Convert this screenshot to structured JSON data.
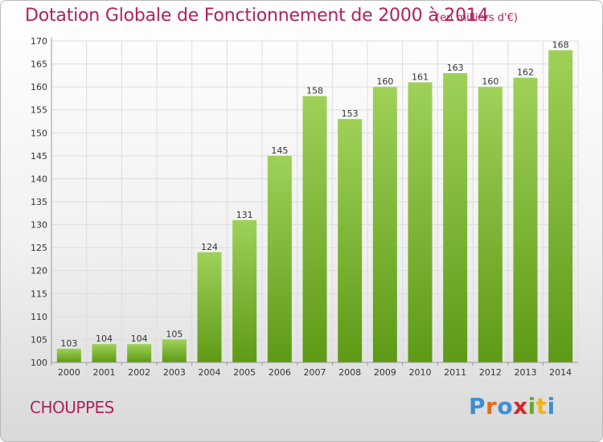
{
  "header": {
    "title": "Dotation Globale de Fonctionnement de 2000 à 2014",
    "unit": "(en milliers d'€)"
  },
  "footer": {
    "commune": "CHOUPPES",
    "logo": "Proxiti"
  },
  "colors": {
    "title": "#b2215d",
    "bar_top": "#9fd158",
    "bar_bottom": "#5e9a16",
    "grid": "#dddddd"
  },
  "chart_data": {
    "type": "bar",
    "title": "Dotation Globale de Fonctionnement de 2000 à 2014",
    "subtitle": "(en milliers d'€)",
    "xlabel": "",
    "ylabel": "",
    "categories": [
      "2000",
      "2001",
      "2002",
      "2003",
      "2004",
      "2005",
      "2006",
      "2007",
      "2008",
      "2009",
      "2010",
      "2011",
      "2012",
      "2013",
      "2014"
    ],
    "values": [
      103,
      104,
      104,
      105,
      124,
      131,
      145,
      158,
      153,
      160,
      161,
      163,
      160,
      162,
      168
    ],
    "ylim": [
      100,
      170
    ],
    "yticks": [
      100,
      105,
      110,
      115,
      120,
      125,
      130,
      135,
      140,
      145,
      150,
      155,
      160,
      165,
      170
    ],
    "grid": true,
    "data_labels": true
  }
}
